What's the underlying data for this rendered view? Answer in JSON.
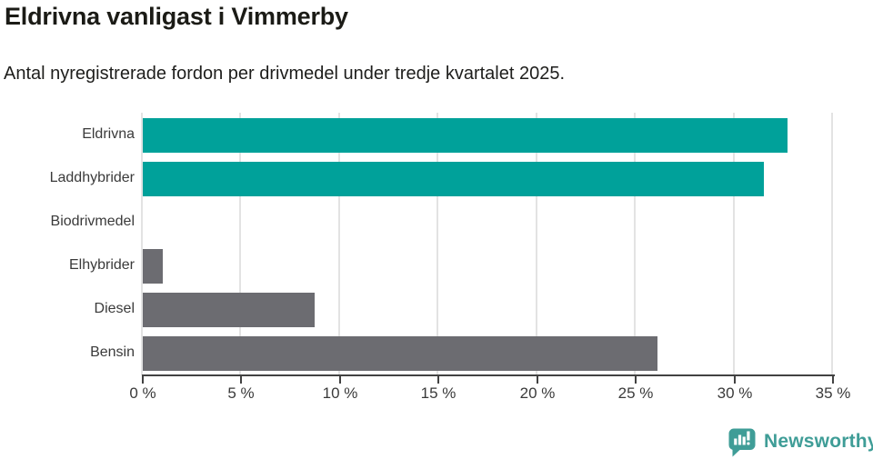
{
  "header": {
    "title": "Eldrivna vanligast i Vimmerby",
    "subtitle": "Antal nyregistrerade fordon per drivmedel under tredje kvartalet 2025."
  },
  "chart_data": {
    "type": "bar",
    "orientation": "horizontal",
    "title": "Eldrivna vanligast i Vimmerby",
    "subtitle": "Antal nyregistrerade fordon per drivmedel under tredje kvartalet 2025.",
    "categories": [
      "Eldrivna",
      "Laddhybrider",
      "Biodrivmedel",
      "Elhybrider",
      "Diesel",
      "Bensin"
    ],
    "values": [
      32.7,
      31.5,
      0,
      1.0,
      8.7,
      26.1
    ],
    "unit": "%",
    "xlabel": "",
    "ylabel": "",
    "xlim": [
      0,
      35
    ],
    "x_ticks": [
      0,
      5,
      10,
      15,
      20,
      25,
      30,
      35
    ],
    "x_tick_labels": [
      "0 %",
      "5 %",
      "10 %",
      "15 %",
      "20 %",
      "25 %",
      "30 %",
      "35 %"
    ],
    "bar_colors": [
      "#00a19a",
      "#00a19a",
      "#6c6c71",
      "#6c6c71",
      "#6c6c71",
      "#6c6c71"
    ],
    "grid": true,
    "legend": false
  },
  "colors": {
    "teal": "#00a19a",
    "gray": "#6c6c71",
    "gridline": "#e3e3e3",
    "axis": "#424242",
    "label_text": "#3a3a3a",
    "title_text": "#1b1b16",
    "logo_teal": "#3f9d97"
  },
  "footer": {
    "brand": "Newsworthy"
  }
}
